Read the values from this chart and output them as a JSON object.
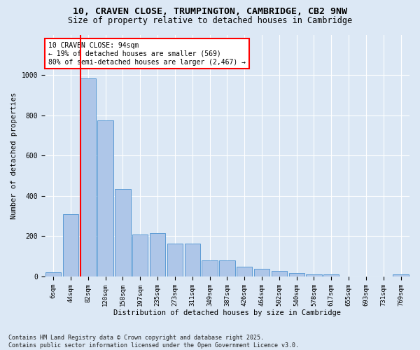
{
  "title_line1": "10, CRAVEN CLOSE, TRUMPINGTON, CAMBRIDGE, CB2 9NW",
  "title_line2": "Size of property relative to detached houses in Cambridge",
  "xlabel": "Distribution of detached houses by size in Cambridge",
  "ylabel": "Number of detached properties",
  "bar_labels": [
    "6sqm",
    "44sqm",
    "82sqm",
    "120sqm",
    "158sqm",
    "197sqm",
    "235sqm",
    "273sqm",
    "311sqm",
    "349sqm",
    "387sqm",
    "426sqm",
    "464sqm",
    "502sqm",
    "540sqm",
    "578sqm",
    "617sqm",
    "655sqm",
    "693sqm",
    "731sqm",
    "769sqm"
  ],
  "bar_values": [
    22,
    308,
    985,
    775,
    435,
    210,
    215,
    162,
    162,
    80,
    80,
    50,
    38,
    28,
    18,
    12,
    10,
    0,
    0,
    0,
    10
  ],
  "bar_color": "#aec6e8",
  "bar_edge_color": "#5b9bd5",
  "vline_color": "red",
  "annotation_text": "10 CRAVEN CLOSE: 94sqm\n← 19% of detached houses are smaller (569)\n80% of semi-detached houses are larger (2,467) →",
  "annotation_box_color": "white",
  "annotation_box_edge_color": "red",
  "ylim": [
    0,
    1200
  ],
  "yticks": [
    0,
    200,
    400,
    600,
    800,
    1000
  ],
  "background_color": "#dce8f5",
  "grid_color": "white",
  "footnote": "Contains HM Land Registry data © Crown copyright and database right 2025.\nContains public sector information licensed under the Open Government Licence v3.0.",
  "title_fontsize": 9.5,
  "subtitle_fontsize": 8.5,
  "label_fontsize": 7.5,
  "tick_fontsize": 6.5,
  "footnote_fontsize": 6
}
